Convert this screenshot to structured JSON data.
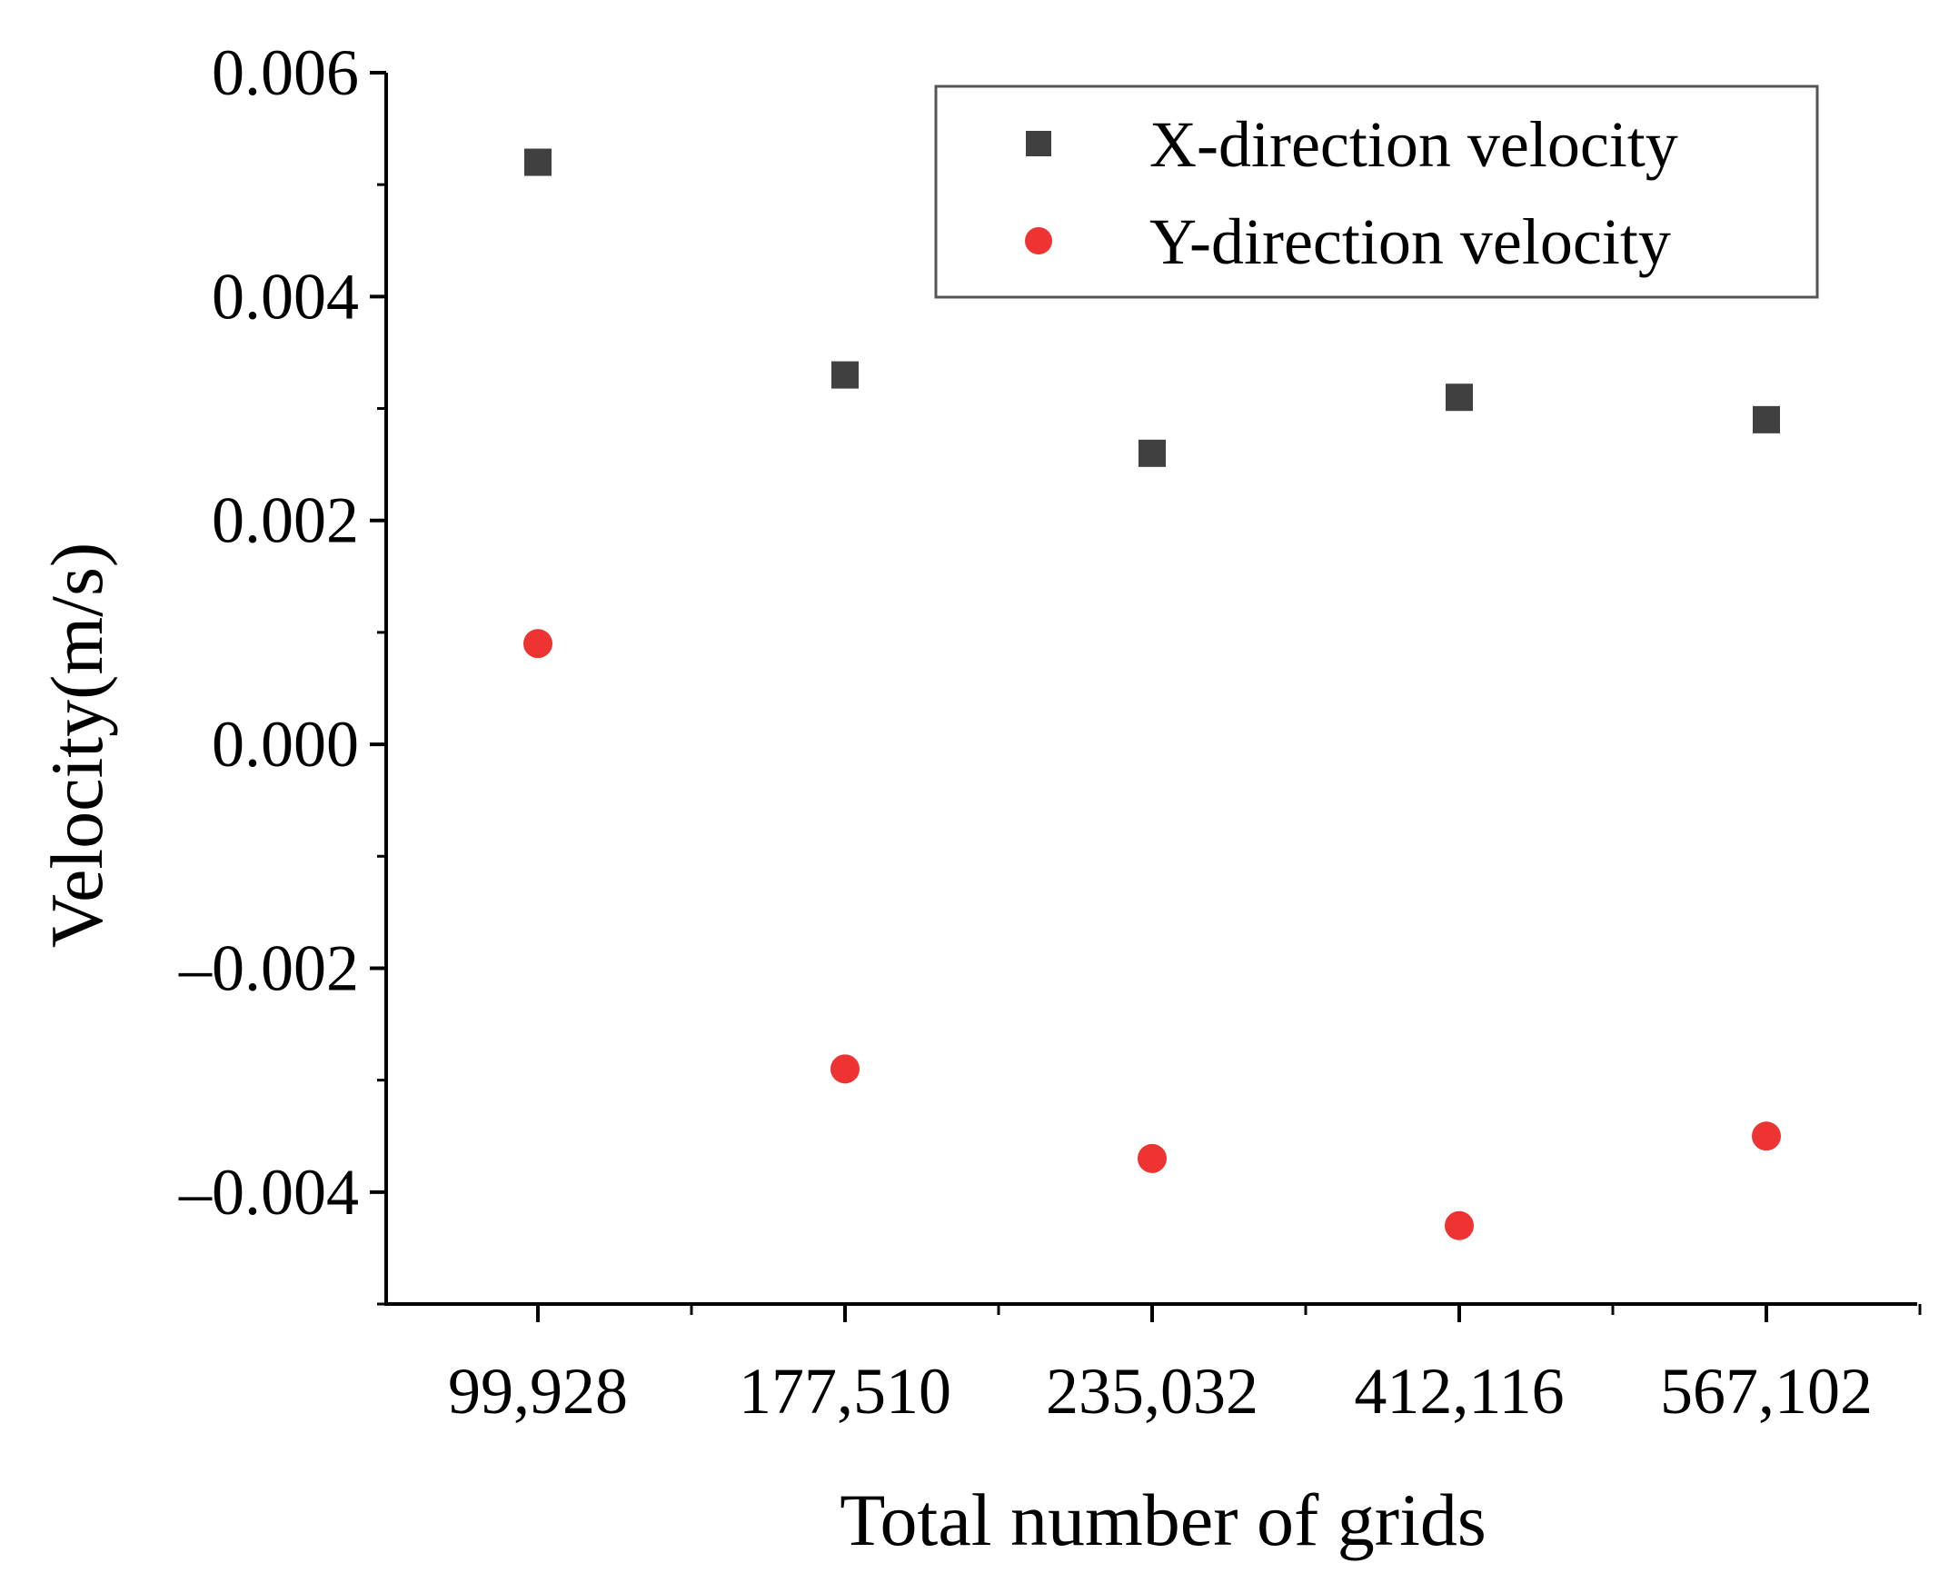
{
  "chart_data": {
    "type": "scatter",
    "title": "",
    "xlabel": "Total number of grids",
    "ylabel": "Velocity(m/s)",
    "categories": [
      "99,928",
      "177,510",
      "235,032",
      "412,116",
      "567,102"
    ],
    "ylim": [
      -0.005,
      0.006
    ],
    "yticks": [
      -0.004,
      -0.002,
      0.0,
      0.002,
      0.004,
      0.006
    ],
    "ytick_labels": [
      "–0.004",
      "–0.002",
      "0.000",
      "0.002",
      "0.004",
      "0.006"
    ],
    "grid": false,
    "legend_position": "top-right",
    "series": [
      {
        "name": "X-direction velocity",
        "marker": "square",
        "color": "#404040",
        "values": [
          0.0052,
          0.0033,
          0.0026,
          0.0031,
          0.0029
        ]
      },
      {
        "name": "Y-direction velocity",
        "marker": "circle",
        "color": "#ee3333",
        "values": [
          0.0009,
          -0.0029,
          -0.0037,
          -0.0043,
          -0.0035
        ]
      }
    ]
  }
}
